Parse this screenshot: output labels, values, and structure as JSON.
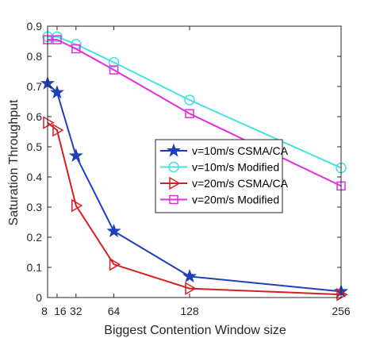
{
  "chart_data": {
    "type": "line",
    "xlabel": "Biggest Contention Window size",
    "ylabel": "Saturation Throughput",
    "xlim": [
      8,
      256
    ],
    "ylim": [
      0,
      0.9
    ],
    "xticks": [
      8,
      16,
      32,
      64,
      128,
      256
    ],
    "xtick_labels": [
      "8",
      "16",
      "32",
      "64",
      "128",
      "256"
    ],
    "yticks": [
      0,
      0.1,
      0.2,
      0.3,
      0.4,
      0.5,
      0.6,
      0.7,
      0.8,
      0.9
    ],
    "ytick_labels": [
      "0",
      "0.1",
      "0.2",
      "0.3",
      "0.4",
      "0.5",
      "0.6",
      "0.7",
      "0.8",
      "0.9"
    ],
    "grid": false,
    "legend_position": "center-right",
    "series": [
      {
        "name": "v=10m/s CSMA/CA",
        "color": "#1f3fbf",
        "marker": "star",
        "x": [
          8,
          16,
          32,
          64,
          128,
          256
        ],
        "y": [
          0.71,
          0.68,
          0.47,
          0.22,
          0.07,
          0.02
        ]
      },
      {
        "name": "v=10m/s Modified",
        "color": "#46e0e0",
        "marker": "circle",
        "x": [
          8,
          16,
          32,
          64,
          128,
          256
        ],
        "y": [
          0.865,
          0.865,
          0.84,
          0.78,
          0.655,
          0.43
        ]
      },
      {
        "name": "v=20m/s CSMA/CA",
        "color": "#d42020",
        "marker": "triangle-right",
        "x": [
          8,
          16,
          32,
          64,
          128,
          256
        ],
        "y": [
          0.58,
          0.555,
          0.305,
          0.11,
          0.03,
          0.01
        ]
      },
      {
        "name": "v=20m/s Modified",
        "color": "#e02ee0",
        "marker": "square",
        "x": [
          8,
          16,
          32,
          64,
          128,
          256
        ],
        "y": [
          0.855,
          0.855,
          0.825,
          0.755,
          0.61,
          0.37
        ]
      }
    ]
  }
}
